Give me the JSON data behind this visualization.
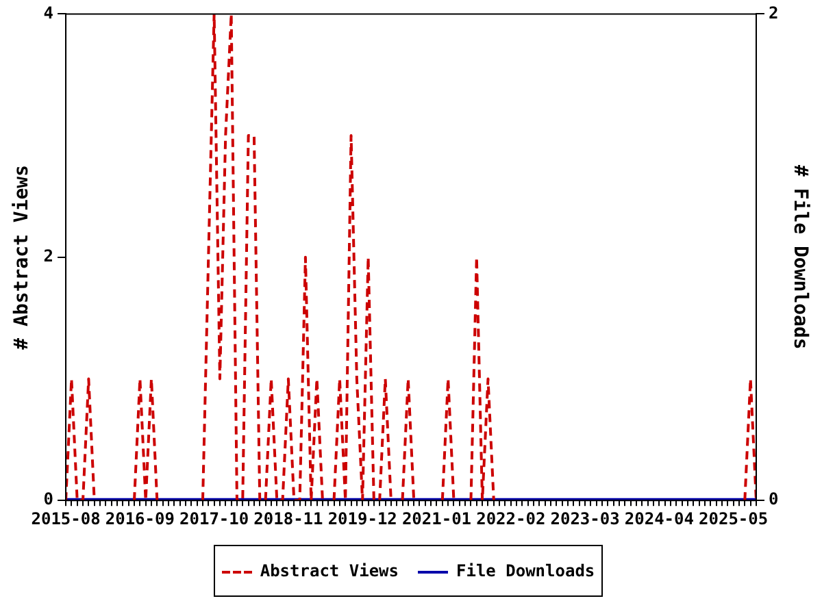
{
  "chart_data": {
    "type": "line",
    "ylabel": "# Abstract Views",
    "y2label": "# File Downloads",
    "x": [
      "2015-08",
      "2015-09",
      "2015-10",
      "2015-11",
      "2015-12",
      "2016-01",
      "2016-02",
      "2016-03",
      "2016-04",
      "2016-05",
      "2016-06",
      "2016-07",
      "2016-08",
      "2016-09",
      "2016-10",
      "2016-11",
      "2016-12",
      "2017-01",
      "2017-02",
      "2017-03",
      "2017-04",
      "2017-05",
      "2017-06",
      "2017-07",
      "2017-08",
      "2017-09",
      "2017-10",
      "2017-11",
      "2017-12",
      "2018-01",
      "2018-02",
      "2018-03",
      "2018-04",
      "2018-05",
      "2018-06",
      "2018-07",
      "2018-08",
      "2018-09",
      "2018-10",
      "2018-11",
      "2018-12",
      "2019-01",
      "2019-02",
      "2019-03",
      "2019-04",
      "2019-05",
      "2019-06",
      "2019-07",
      "2019-08",
      "2019-09",
      "2019-10",
      "2019-11",
      "2019-12",
      "2020-01",
      "2020-02",
      "2020-03",
      "2020-04",
      "2020-05",
      "2020-06",
      "2020-07",
      "2020-08",
      "2020-09",
      "2020-10",
      "2020-11",
      "2020-12",
      "2021-01",
      "2021-02",
      "2021-03",
      "2021-04",
      "2021-05",
      "2021-06",
      "2021-07",
      "2021-08",
      "2021-09",
      "2021-10",
      "2021-11",
      "2021-12",
      "2022-01",
      "2022-02",
      "2022-03",
      "2022-04",
      "2022-05",
      "2022-06",
      "2022-07",
      "2022-08",
      "2022-09",
      "2022-10",
      "2022-11",
      "2022-12",
      "2023-01",
      "2023-02",
      "2023-03",
      "2023-04",
      "2023-05",
      "2023-06",
      "2023-07",
      "2023-08",
      "2023-09",
      "2023-10",
      "2023-11",
      "2023-12",
      "2024-01",
      "2024-02",
      "2024-03",
      "2024-04",
      "2024-05",
      "2024-06",
      "2024-07",
      "2024-08",
      "2024-09",
      "2024-10",
      "2024-11",
      "2024-12",
      "2025-01",
      "2025-02",
      "2025-03",
      "2025-04",
      "2025-05",
      "2025-06",
      "2025-07",
      "2025-08",
      "2025-09"
    ],
    "series": [
      {
        "name": "Abstract Views",
        "color": "#cc0000",
        "line_style": "dashed",
        "values": [
          0,
          1,
          0,
          0,
          1,
          0,
          null,
          null,
          null,
          null,
          null,
          null,
          0,
          1,
          0,
          1,
          0,
          null,
          null,
          null,
          null,
          null,
          null,
          null,
          0,
          2,
          4,
          1,
          3,
          4,
          0,
          0,
          3,
          3,
          0,
          0,
          1,
          0,
          0,
          1,
          0,
          0,
          2,
          0,
          1,
          0,
          null,
          0,
          1,
          0,
          3,
          1,
          0,
          2,
          0,
          0,
          1,
          0,
          null,
          0,
          1,
          0,
          null,
          null,
          null,
          null,
          0,
          1,
          0,
          null,
          null,
          0,
          2,
          0,
          1,
          0,
          null,
          null,
          null,
          null,
          null,
          null,
          null,
          null,
          null,
          null,
          null,
          null,
          null,
          null,
          null,
          null,
          null,
          null,
          null,
          null,
          null,
          null,
          null,
          null,
          null,
          null,
          null,
          null,
          null,
          null,
          null,
          null,
          null,
          null,
          null,
          null,
          null,
          null,
          null,
          null,
          null,
          null,
          null,
          0,
          1,
          0
        ]
      },
      {
        "name": "File Downloads",
        "color": "#0000aa",
        "line_style": "solid",
        "axis": "y2",
        "values": [
          0,
          0,
          0,
          0,
          0,
          0,
          0,
          0,
          0,
          0,
          0,
          0,
          0,
          0,
          0,
          0,
          0,
          0,
          0,
          0,
          0,
          0,
          0,
          0,
          0,
          0,
          0,
          0,
          0,
          0,
          0,
          0,
          0,
          0,
          0,
          0,
          0,
          0,
          0,
          0,
          0,
          0,
          0,
          0,
          0,
          0,
          0,
          0,
          0,
          0,
          0,
          0,
          0,
          0,
          0,
          0,
          0,
          0,
          0,
          0,
          0,
          0,
          0,
          0,
          0,
          0,
          0,
          0,
          0,
          0,
          0,
          0,
          0,
          0,
          0,
          0,
          0,
          0,
          0,
          0,
          0,
          0,
          0,
          0,
          0,
          0,
          0,
          0,
          0,
          0,
          0,
          0,
          0,
          0,
          0,
          0,
          0,
          0,
          0,
          0,
          0,
          0,
          0,
          0,
          0,
          0,
          0,
          0,
          0,
          0,
          0,
          0,
          0,
          0,
          0,
          0,
          0,
          0,
          0,
          0,
          0,
          0
        ]
      }
    ],
    "xlim": [
      "2015-08",
      "2025-09"
    ],
    "xticks": [
      "2015-08",
      "2016-09",
      "2017-10",
      "2018-11",
      "2019-12",
      "2021-01",
      "2022-02",
      "2023-03",
      "2024-04",
      "2025-05"
    ],
    "ylim": [
      0,
      4
    ],
    "yticks": [
      0,
      2,
      4
    ],
    "y2lim": [
      0,
      2
    ],
    "y2ticks": [
      0,
      2
    ],
    "grid": false,
    "legend": "bottom",
    "marker": "none"
  }
}
